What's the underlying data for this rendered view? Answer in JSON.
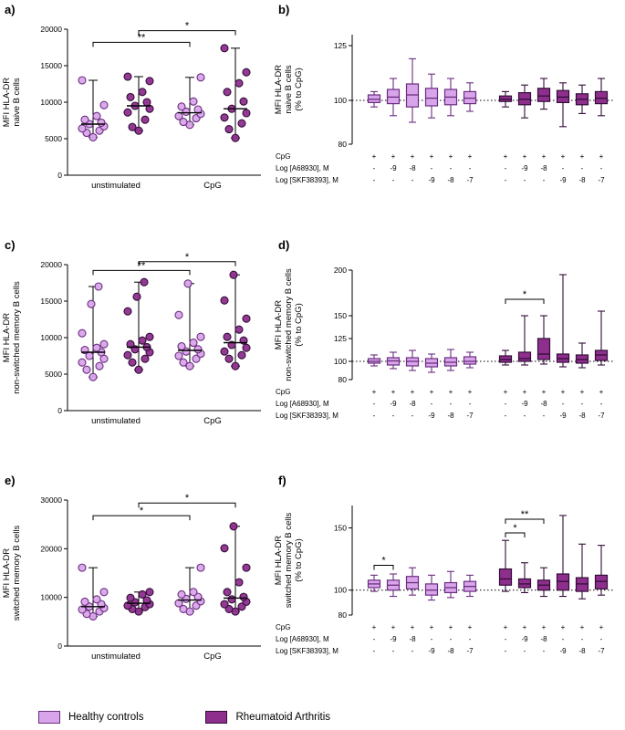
{
  "colors": {
    "healthy": {
      "fill": "#d9a5ea",
      "stroke": "#6b2d80"
    },
    "ra": {
      "fill": "#8e2f8e",
      "stroke": "#330d38"
    },
    "axis": "#000000",
    "stat": "#000000"
  },
  "legend": {
    "items": [
      {
        "key": "healthy",
        "label": "Healthy controls"
      },
      {
        "key": "ra",
        "label": "Rheumatoid Arthritis"
      }
    ]
  },
  "chart_data": [
    {
      "panel_label": "a)",
      "type": "scatter",
      "ylabel_lines": [
        "MFI HLA-DR",
        "naive B cells"
      ],
      "ylim": [
        0,
        20000
      ],
      "yticks": [
        0,
        5000,
        10000,
        15000,
        20000
      ],
      "categories": [
        "unstimulated",
        "CpG"
      ],
      "series_keys": [
        "healthy",
        "ra"
      ],
      "points": [
        {
          "healthy": [
            5200,
            5800,
            6100,
            6400,
            6700,
            7000,
            7200,
            7600,
            8100,
            9600,
            13000
          ],
          "ra": [
            6100,
            6600,
            7600,
            8600,
            9100,
            9500,
            10000,
            10700,
            11400,
            12900,
            13500
          ]
        },
        {
          "healthy": [
            6900,
            7300,
            7800,
            8100,
            8400,
            8700,
            9000,
            9400,
            10100,
            13400
          ],
          "ra": [
            5100,
            6300,
            7100,
            7900,
            8500,
            9100,
            10100,
            11400,
            12600,
            14100,
            17400
          ]
        }
      ],
      "brackets": [
        {
          "from": [
            0,
            0
          ],
          "to": [
            1,
            0
          ],
          "y": 18200,
          "label": "**"
        },
        {
          "from": [
            0,
            1
          ],
          "to": [
            1,
            1
          ],
          "y": 19800,
          "label": "*"
        }
      ]
    },
    {
      "panel_label": "b)",
      "type": "box",
      "ylabel_lines": [
        "MFI HLA-DR",
        "naive B cells",
        "(% to CpG)"
      ],
      "ylim": [
        80,
        130
      ],
      "yticks": [
        80,
        100,
        125
      ],
      "baseline": 100,
      "series": [
        {
          "key": "healthy",
          "name": "Healthy controls",
          "boxes": [
            [
              97,
              99,
              100.5,
              102.5,
              104
            ],
            [
              93,
              98.5,
              101.5,
              105,
              110
            ],
            [
              90,
              97,
              102.5,
              107.5,
              119
            ],
            [
              92,
              97.5,
              101,
              105.5,
              112
            ],
            [
              93,
              98,
              101.5,
              105,
              110
            ],
            [
              95,
              98.5,
              101,
              104,
              108
            ]
          ]
        },
        {
          "key": "ra",
          "name": "Rheumatoid Arthritis",
          "boxes": [
            [
              97,
              99.5,
              100.5,
              102,
              104
            ],
            [
              92,
              98,
              100.5,
              103.5,
              107
            ],
            [
              96,
              99.5,
              102,
              105.5,
              110
            ],
            [
              88,
              99,
              101.5,
              104.5,
              108
            ],
            [
              94,
              98,
              100.5,
              103,
              107
            ],
            [
              93,
              98.5,
              101,
              104,
              110
            ]
          ]
        }
      ],
      "xaxis_rows": [
        {
          "label": "CpG",
          "values": [
            "+",
            "+",
            "+",
            "+",
            "+",
            "+",
            "+",
            "+",
            "+",
            "+",
            "+",
            "+"
          ]
        },
        {
          "label": "Log [A68930], M",
          "values": [
            "-",
            "-9",
            "-8",
            "-",
            "-",
            "-",
            "-",
            "-9",
            "-8",
            "-",
            "-",
            "-"
          ]
        },
        {
          "label": "Log [SKF38393], M",
          "values": [
            "-",
            "-",
            "-",
            "-9",
            "-8",
            "-7",
            "-",
            "-",
            "-",
            "-9",
            "-8",
            "-7"
          ]
        }
      ],
      "brackets": []
    },
    {
      "panel_label": "c)",
      "type": "scatter",
      "ylabel_lines": [
        "MFI HLA-DR",
        "non-switched memory B cells"
      ],
      "ylim": [
        0,
        20000
      ],
      "yticks": [
        0,
        5000,
        10000,
        15000,
        20000
      ],
      "categories": [
        "unstimulated",
        "CpG"
      ],
      "series_keys": [
        "healthy",
        "ra"
      ],
      "points": [
        {
          "healthy": [
            4600,
            5600,
            6100,
            6600,
            7100,
            7500,
            8000,
            8300,
            8600,
            9100,
            10600,
            14600,
            17000
          ],
          "ra": [
            5600,
            6600,
            7100,
            7600,
            8000,
            8400,
            8700,
            9100,
            9600,
            10100,
            13600,
            15600,
            17600
          ]
        },
        {
          "healthy": [
            6100,
            6600,
            7100,
            7500,
            7800,
            8100,
            8400,
            8800,
            9300,
            10100,
            13100,
            17400
          ],
          "ra": [
            6100,
            7100,
            7600,
            8100,
            8600,
            9000,
            9600,
            10100,
            11100,
            12600,
            15100,
            18600
          ]
        }
      ],
      "brackets": [
        {
          "from": [
            0,
            0
          ],
          "to": [
            1,
            0
          ],
          "y": 19200,
          "label": "**"
        },
        {
          "from": [
            0,
            1
          ],
          "to": [
            1,
            1
          ],
          "y": 20400,
          "label": "*"
        }
      ]
    },
    {
      "panel_label": "d)",
      "type": "box",
      "ylabel_lines": [
        "MFI HLA-DR",
        "non-switched memory B cells",
        "(% to CpG)"
      ],
      "ylim": [
        80,
        200
      ],
      "yticks": [
        80,
        100,
        125,
        150,
        200
      ],
      "baseline": 100,
      "series": [
        {
          "key": "healthy",
          "name": "Healthy controls",
          "boxes": [
            [
              95,
              98,
              100,
              103,
              107
            ],
            [
              92,
              96,
              100.5,
              104,
              110
            ],
            [
              90,
              95,
              100,
              104,
              112
            ],
            [
              88,
              94,
              98,
              103,
              108
            ],
            [
              90,
              95,
              99,
              104,
              113
            ],
            [
              93,
              97,
              100,
              105,
              110
            ]
          ]
        },
        {
          "key": "ra",
          "name": "Rheumatoid Arthritis",
          "boxes": [
            [
              96,
              99,
              102,
              106,
              112
            ],
            [
              96,
              100,
              103,
              110,
              150
            ],
            [
              97,
              102,
              108,
              125,
              150
            ],
            [
              94,
              99,
              103,
              108,
              195
            ],
            [
              93,
              98,
              102,
              107,
              120
            ],
            [
              96,
              101,
              107,
              112,
              155
            ]
          ]
        }
      ],
      "xaxis_rows": [
        {
          "label": "CpG",
          "values": [
            "+",
            "+",
            "+",
            "+",
            "+",
            "+",
            "+",
            "+",
            "+",
            "+",
            "+",
            "+"
          ]
        },
        {
          "label": "Log [A68930], M",
          "values": [
            "-",
            "-9",
            "-8",
            "-",
            "-",
            "-",
            "-",
            "-9",
            "-8",
            "-",
            "-",
            "-"
          ]
        },
        {
          "label": "Log [SKF38393], M",
          "values": [
            "-",
            "-",
            "-",
            "-9",
            "-8",
            "-7",
            "-",
            "-",
            "-",
            "-9",
            "-8",
            "-7"
          ]
        }
      ],
      "brackets": [
        {
          "from": 6,
          "to": 8,
          "y": 168,
          "label": "*"
        }
      ]
    },
    {
      "panel_label": "e)",
      "type": "scatter",
      "ylabel_lines": [
        "MFI HLA-DR",
        "switched memory B cells"
      ],
      "ylim": [
        0,
        30000
      ],
      "yticks": [
        0,
        10000,
        20000,
        30000
      ],
      "categories": [
        "unstimulated",
        "CpG"
      ],
      "series_keys": [
        "healthy",
        "ra"
      ],
      "points": [
        {
          "healthy": [
            6100,
            6600,
            7100,
            7500,
            7800,
            8100,
            8600,
            9100,
            9600,
            11100,
            16100
          ],
          "ra": [
            7100,
            7600,
            8000,
            8300,
            8600,
            9000,
            9400,
            9900,
            10600,
            11100
          ]
        },
        {
          "healthy": [
            7100,
            7600,
            8300,
            8800,
            9200,
            9700,
            10100,
            10600,
            11100,
            16100
          ],
          "ra": [
            7100,
            7600,
            8100,
            8600,
            9100,
            9600,
            10100,
            11100,
            13100,
            16100,
            20100,
            24600
          ]
        }
      ],
      "brackets": [
        {
          "from": [
            0,
            0
          ],
          "to": [
            1,
            0
          ],
          "y": 26800,
          "label": "*"
        },
        {
          "from": [
            0,
            1
          ],
          "to": [
            1,
            1
          ],
          "y": 29400,
          "label": "*"
        }
      ]
    },
    {
      "panel_label": "f)",
      "type": "box",
      "ylabel_lines": [
        "MFI HLA-DR",
        "switched memory B cells",
        "(% to CpG)"
      ],
      "ylim": [
        80,
        168
      ],
      "yticks": [
        80,
        100,
        150
      ],
      "baseline": 100,
      "series": [
        {
          "key": "healthy",
          "name": "Healthy controls",
          "boxes": [
            [
              99,
              102,
              105,
              108,
              112
            ],
            [
              95,
              100,
              104,
              108,
              113
            ],
            [
              96,
              101,
              106,
              111,
              118
            ],
            [
              92,
              96,
              100,
              105,
              112
            ],
            [
              94,
              98,
              102,
              106,
              115
            ],
            [
              95,
              99,
              103,
              107,
              112
            ]
          ]
        },
        {
          "key": "ra",
          "name": "Rheumatoid Arthritis",
          "boxes": [
            [
              99,
              104,
              109,
              117,
              140
            ],
            [
              98,
              102,
              105,
              109,
              122
            ],
            [
              95,
              100,
              104,
              108,
              118
            ],
            [
              95,
              100,
              107,
              113,
              160
            ],
            [
              93,
              99,
              105,
              110,
              137
            ],
            [
              96,
              101,
              107,
              112,
              136
            ]
          ]
        }
      ],
      "xaxis_rows": [
        {
          "label": "CpG",
          "values": [
            "+",
            "+",
            "+",
            "+",
            "+",
            "+",
            "+",
            "+",
            "+",
            "+",
            "+",
            "+"
          ]
        },
        {
          "label": "Log [A68930], M",
          "values": [
            "-",
            "-9",
            "-8",
            "-",
            "-",
            "-",
            "-",
            "-9",
            "-8",
            "-",
            "-",
            "-"
          ]
        },
        {
          "label": "Log [SKF38393], M",
          "values": [
            "-",
            "-",
            "-",
            "-9",
            "-8",
            "-7",
            "-",
            "-",
            "-",
            "-9",
            "-8",
            "-7"
          ]
        }
      ],
      "brackets": [
        {
          "from": 0,
          "to": 1,
          "y": 120,
          "label": "*"
        },
        {
          "from": 6,
          "to": 7,
          "y": 146,
          "label": "*"
        },
        {
          "from": 6,
          "to": 8,
          "y": 157,
          "label": "**"
        }
      ]
    }
  ]
}
